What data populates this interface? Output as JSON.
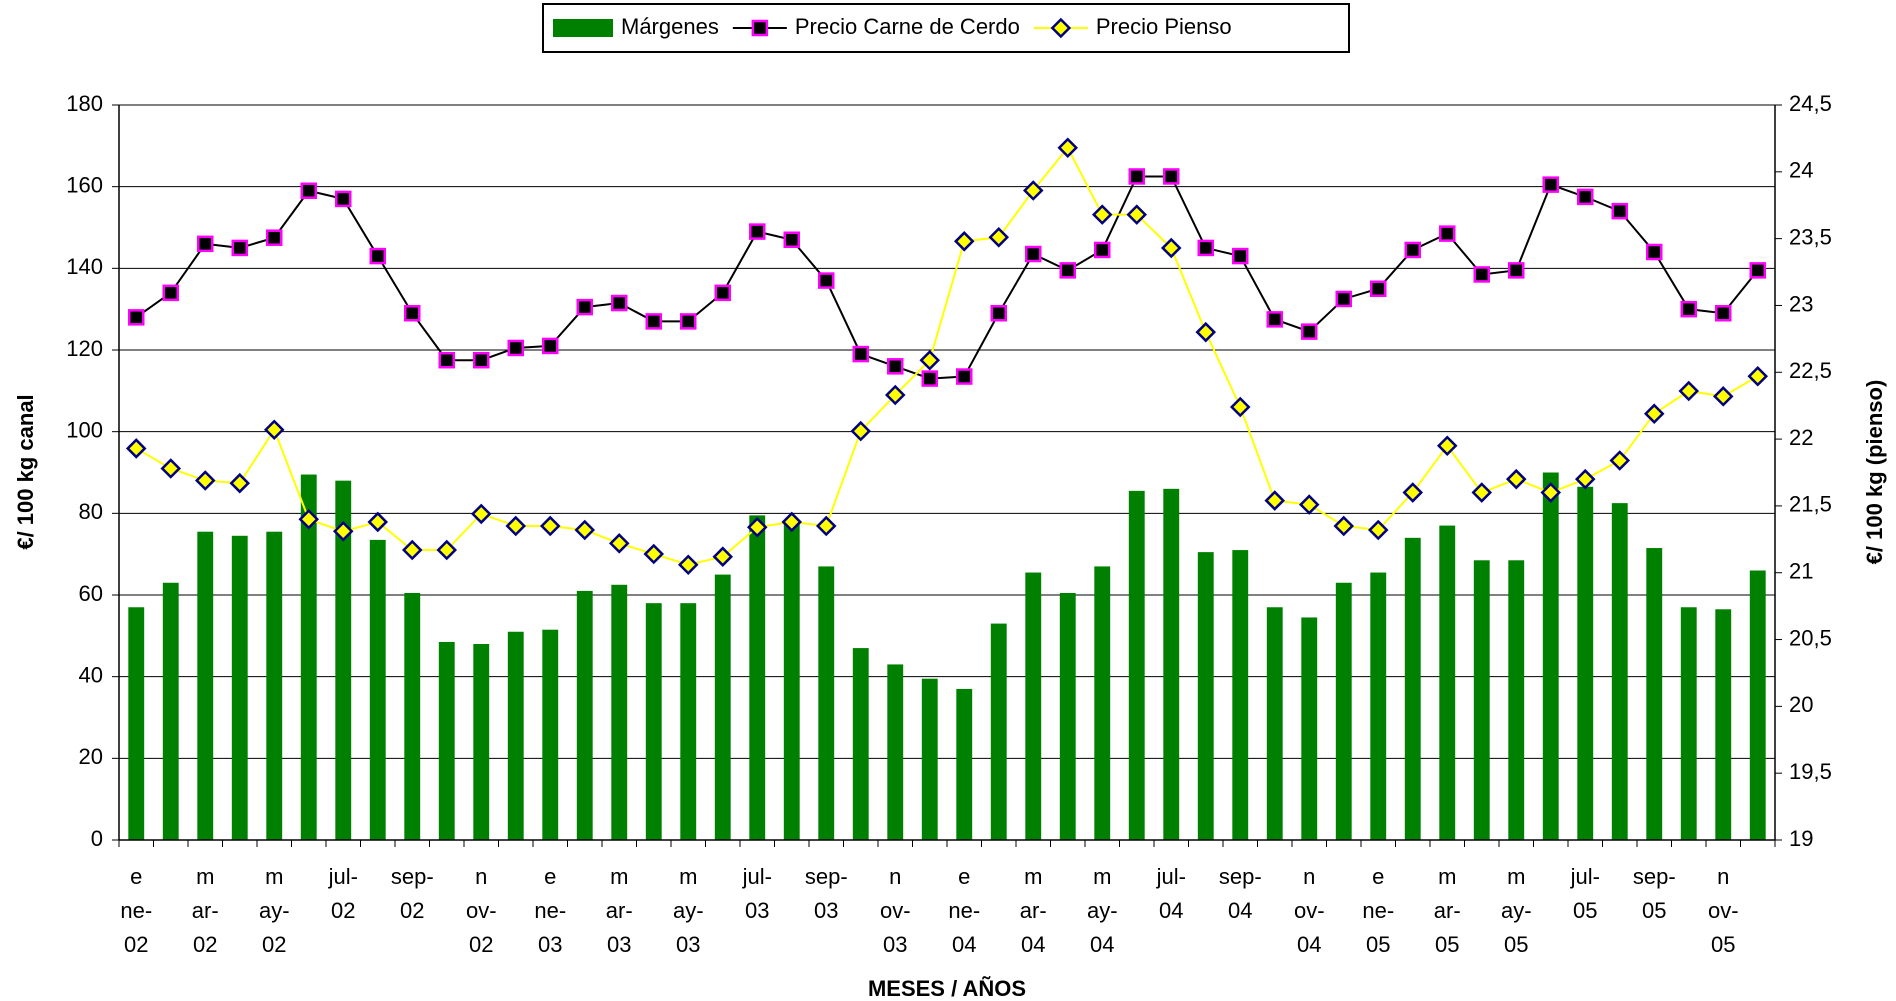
{
  "chart_data": {
    "type": "bar-line",
    "categories": [
      "e\nne-\n02",
      null,
      "m\nar-\n02",
      null,
      "m\nay-\n02",
      null,
      "jul-\n02",
      null,
      "sep-\n02",
      null,
      "n\nov-\n02",
      null,
      "e\nne-\n03",
      null,
      "m\nar-\n03",
      null,
      "m\nay-\n03",
      null,
      "jul-\n03",
      null,
      "sep-\n03",
      null,
      "n\nov-\n03",
      null,
      "e\nne-\n04",
      null,
      "m\nar-\n04",
      null,
      "m\nay-\n04",
      null,
      "jul-\n04",
      null,
      "sep-\n04",
      null,
      "n\nov-\n04",
      null,
      "e\nne-\n05",
      null,
      "m\nar-\n05",
      null,
      "m\nay-\n05",
      null,
      "jul-\n05",
      null,
      "sep-\n05",
      null,
      "n\nov-\n05",
      null
    ],
    "series": [
      {
        "name": "Márgenes",
        "type": "bar",
        "color": "#008000",
        "values": [
          57,
          63,
          75.5,
          74.5,
          75.5,
          89.5,
          88,
          73.5,
          60.5,
          48.5,
          48,
          51,
          51.5,
          61,
          62.5,
          58,
          58,
          65,
          79.5,
          78,
          67,
          47,
          43,
          39.5,
          37,
          53,
          65.5,
          60.5,
          67,
          85.5,
          86,
          70.5,
          71,
          57,
          54.5,
          63,
          65.5,
          74,
          77,
          68.5,
          68.5,
          90,
          86.5,
          82.5,
          71.5,
          57,
          56.5,
          66
        ]
      },
      {
        "name": "Precio Carne de Cerdo",
        "type": "line",
        "color": "#000000",
        "marker": "square",
        "marker_fill": "#000000",
        "marker_edge": "#ff00ff",
        "values": [
          128,
          134,
          146,
          145,
          147.5,
          159,
          157,
          143,
          129,
          117.5,
          117.5,
          120.5,
          121,
          130.5,
          131.5,
          127,
          127,
          134,
          149,
          147,
          137,
          119,
          116,
          113,
          113.5,
          129,
          143.5,
          139.5,
          144.5,
          162.5,
          162.5,
          145,
          143,
          127.5,
          124.5,
          132.5,
          135,
          144.5,
          148.5,
          138.5,
          139.5,
          160.5,
          157.5,
          154,
          144,
          130,
          129,
          139.5
        ]
      },
      {
        "name": "Precio Pienso",
        "type": "line",
        "axis": "y2",
        "color": "#ffff00",
        "marker": "diamond",
        "marker_fill": "#ffff00",
        "marker_edge": "#000080",
        "values": [
          21.93,
          21.78,
          21.69,
          21.67,
          22.07,
          21.4,
          21.31,
          21.38,
          21.17,
          21.17,
          21.44,
          21.35,
          21.35,
          21.32,
          21.22,
          21.14,
          21.06,
          21.12,
          21.34,
          21.38,
          21.35,
          22.06,
          22.33,
          22.59,
          23.48,
          23.51,
          23.86,
          24.18,
          23.68,
          23.68,
          23.43,
          22.8,
          22.24,
          21.54,
          21.51,
          21.35,
          21.32,
          21.6,
          21.95,
          21.6,
          21.7,
          21.6,
          21.7,
          21.84,
          22.19,
          22.36,
          22.32,
          22.47
        ]
      }
    ],
    "ylabel": "€/ 100 kg canal",
    "y2label": "€/ 100 kg (pienso)",
    "xlabel": "MESES / AÑOS",
    "ylim": [
      0,
      180
    ],
    "yticks": [
      0,
      20,
      40,
      60,
      80,
      100,
      120,
      140,
      160,
      180
    ],
    "y2lim": [
      19,
      24.5
    ],
    "y2ticks": [
      19,
      {
        "value": 19.5,
        "label": "19,5"
      },
      20,
      {
        "value": 20.5,
        "label": "20,5"
      },
      21,
      {
        "value": 21.5,
        "label": "21,5"
      },
      22,
      {
        "value": 22.5,
        "label": "22,5"
      },
      23,
      {
        "value": 23.5,
        "label": "23,5"
      },
      24,
      {
        "value": 24.5,
        "label": "24,5"
      }
    ],
    "grid": true,
    "legend": "top"
  }
}
